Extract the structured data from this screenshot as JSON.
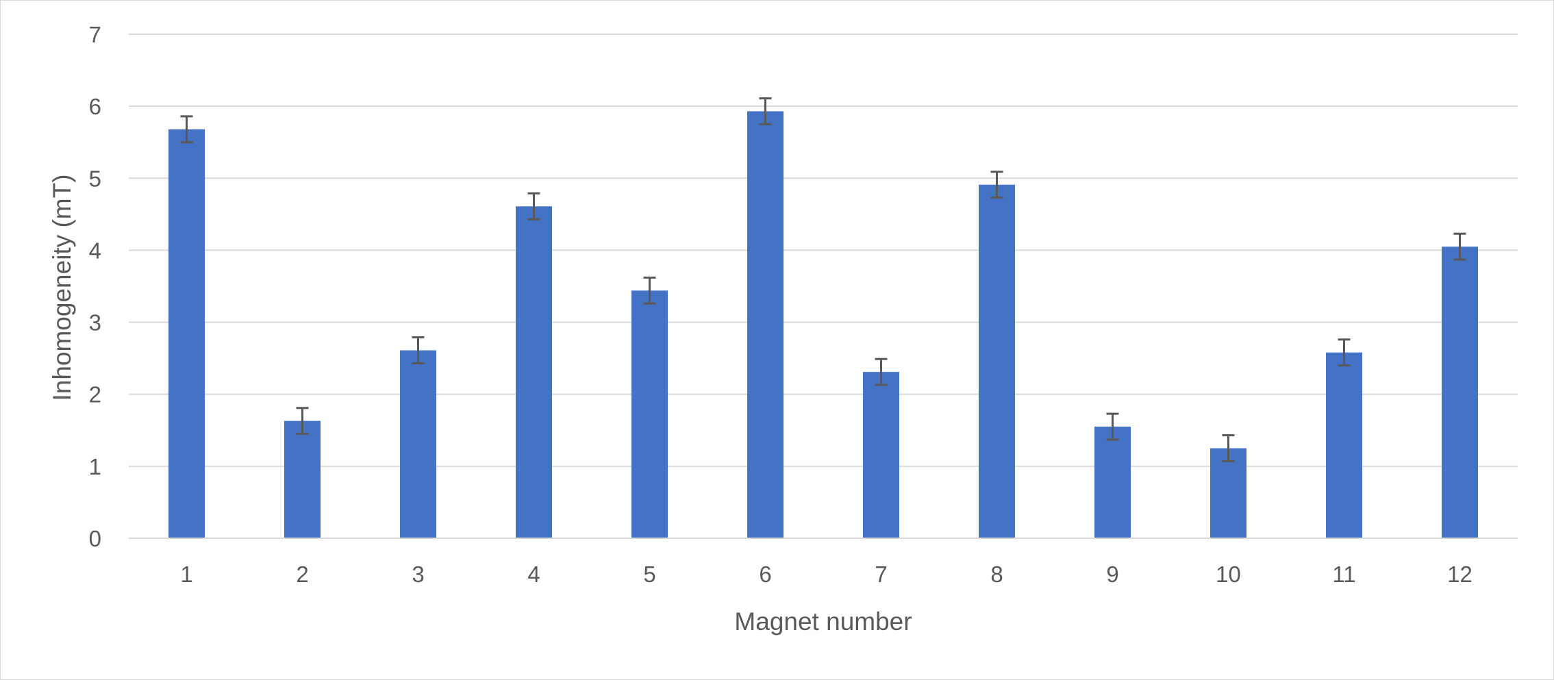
{
  "chart_data": {
    "type": "bar",
    "title": "",
    "xlabel": "Magnet number",
    "ylabel": "Inhomogeneity (mT)",
    "categories": [
      "1",
      "2",
      "3",
      "4",
      "5",
      "6",
      "7",
      "8",
      "9",
      "10",
      "11",
      "12"
    ],
    "values": [
      5.68,
      1.63,
      2.61,
      4.61,
      3.44,
      5.93,
      2.31,
      4.91,
      1.55,
      1.25,
      2.58,
      4.05
    ],
    "error": [
      0.18,
      0.18,
      0.18,
      0.18,
      0.18,
      0.18,
      0.18,
      0.18,
      0.18,
      0.18,
      0.18,
      0.18
    ],
    "ylim": [
      0,
      7
    ],
    "yticks": [
      "0",
      "1",
      "2",
      "3",
      "4",
      "5",
      "6",
      "7"
    ],
    "grid": true,
    "legend": "none",
    "colors": {
      "bar": "#4472c4",
      "error_bar": "#595959",
      "grid": "#d9d9d9",
      "text": "#595959"
    }
  }
}
